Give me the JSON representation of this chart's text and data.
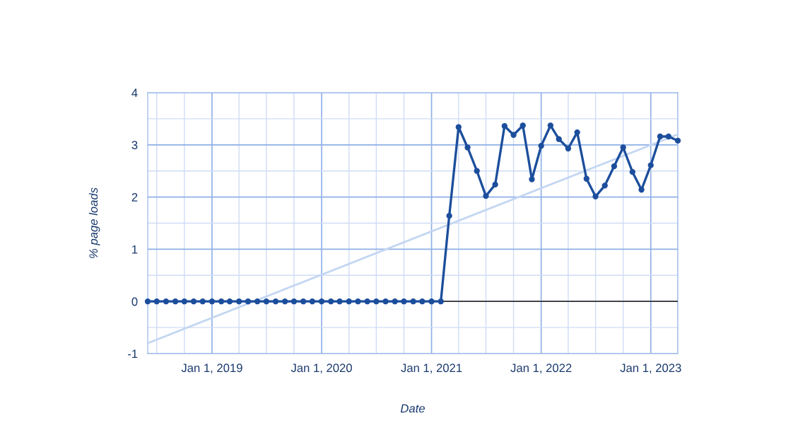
{
  "chart_data": {
    "type": "line",
    "xlabel": "Date",
    "ylabel": "% page loads",
    "x": [
      "2018-06",
      "2018-07",
      "2018-08",
      "2018-09",
      "2018-10",
      "2018-11",
      "2018-12",
      "2019-01",
      "2019-02",
      "2019-03",
      "2019-04",
      "2019-05",
      "2019-06",
      "2019-07",
      "2019-08",
      "2019-09",
      "2019-10",
      "2019-11",
      "2019-12",
      "2020-01",
      "2020-02",
      "2020-03",
      "2020-04",
      "2020-05",
      "2020-06",
      "2020-07",
      "2020-08",
      "2020-09",
      "2020-10",
      "2020-11",
      "2020-12",
      "2021-01",
      "2021-02",
      "2021-03",
      "2021-04",
      "2021-05",
      "2021-06",
      "2021-07",
      "2021-08",
      "2021-09",
      "2021-10",
      "2021-11",
      "2021-12",
      "2022-01",
      "2022-02",
      "2022-03",
      "2022-04",
      "2022-05",
      "2022-06",
      "2022-07",
      "2022-08",
      "2022-09",
      "2022-10",
      "2022-11",
      "2022-12",
      "2023-01",
      "2023-02",
      "2023-03",
      "2023-04"
    ],
    "series": [
      {
        "color": "#1c4e9c",
        "marker": "circle",
        "values": [
          0,
          0,
          0,
          0,
          0,
          0,
          0,
          0,
          0,
          0,
          0,
          0,
          0,
          0,
          0,
          0,
          0,
          0,
          0,
          0,
          0,
          0,
          0,
          0,
          0,
          0,
          0,
          0,
          0,
          0,
          0,
          0,
          0,
          1.64,
          3.34,
          2.95,
          2.5,
          2.02,
          2.24,
          3.36,
          3.19,
          3.37,
          2.34,
          2.98,
          3.37,
          3.11,
          2.93,
          3.24,
          2.35,
          2.01,
          2.22,
          2.59,
          2.95,
          2.48,
          2.14,
          2.61,
          3.16,
          3.16,
          3.08
        ]
      },
      {
        "type": "line",
        "color": "#c3d6f2",
        "marker": "none",
        "x": [
          "2018-06",
          "2023-04"
        ],
        "values": [
          -0.8,
          3.2
        ]
      }
    ],
    "xlim": [
      "2018-06",
      "2023-04"
    ],
    "xticks": [
      {
        "value": "2018-07",
        "label": null
      },
      {
        "value": "2018-10",
        "label": null
      },
      {
        "value": "2019-01",
        "label": "Jan 1, 2019"
      },
      {
        "value": "2019-04",
        "label": null
      },
      {
        "value": "2019-07",
        "label": null
      },
      {
        "value": "2019-10",
        "label": null
      },
      {
        "value": "2020-01",
        "label": "Jan 1, 2020"
      },
      {
        "value": "2020-04",
        "label": null
      },
      {
        "value": "2020-07",
        "label": null
      },
      {
        "value": "2020-10",
        "label": null
      },
      {
        "value": "2021-01",
        "label": "Jan 1, 2021"
      },
      {
        "value": "2021-04",
        "label": null
      },
      {
        "value": "2021-07",
        "label": null
      },
      {
        "value": "2021-10",
        "label": null
      },
      {
        "value": "2022-01",
        "label": "Jan 1, 2022"
      },
      {
        "value": "2022-04",
        "label": null
      },
      {
        "value": "2022-07",
        "label": null
      },
      {
        "value": "2022-10",
        "label": null
      },
      {
        "value": "2023-01",
        "label": "Jan 1, 2023"
      },
      {
        "value": "2023-04",
        "label": null
      }
    ],
    "ylim": [
      -1,
      4
    ],
    "yticks": [
      -1,
      {
        "value": -0.5,
        "label": null
      },
      0,
      {
        "value": 0.5,
        "label": null
      },
      1,
      {
        "value": 1.5,
        "label": null
      },
      2,
      {
        "value": 2.5,
        "label": null
      },
      3,
      {
        "value": 3.5,
        "label": null
      },
      4
    ],
    "grid": true,
    "legend": false,
    "line_style": "solid",
    "ref_lines": [
      {
        "axis": "y",
        "value": 0,
        "color": "#333333"
      }
    ]
  }
}
